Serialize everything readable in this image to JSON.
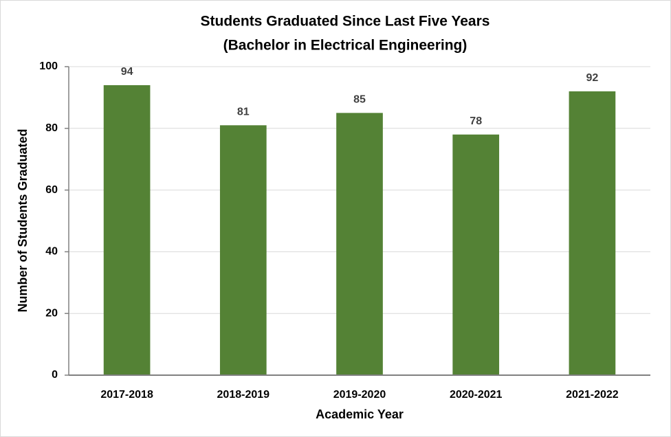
{
  "chart_data": {
    "type": "bar",
    "title": "Students Graduated Since Last Five Years",
    "subtitle": "(Bachelor in Electrical Engineering)",
    "x_label": "Academic Year",
    "y_label": "Number of Students Graduated",
    "categories": [
      "2017-2018",
      "2018-2019",
      "2019-2020",
      "2020-2021",
      "2021-2022"
    ],
    "values": [
      94,
      81,
      85,
      78,
      92
    ],
    "color": "#548235",
    "ylim": [
      0,
      100
    ],
    "yticks": [
      0,
      20,
      40,
      60,
      80,
      100
    ],
    "grid": true
  }
}
